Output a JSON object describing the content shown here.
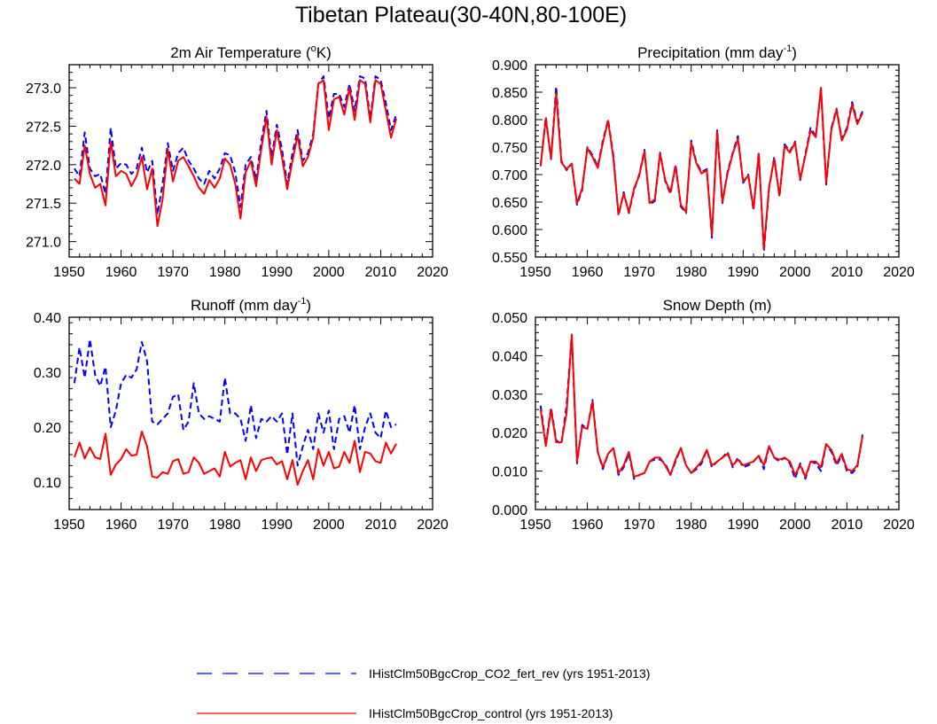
{
  "title": "Tibetan Plateau(30-40N,80-100E)",
  "legend": [
    {
      "label": "IHistClm50BgcCrop_CO2_fert_rev (yrs 1951-2013)",
      "color": "#0000ff",
      "style": "dashed"
    },
    {
      "label": "IHistClm50BgcCrop_control (yrs 1951-2013)",
      "color": "#ff0000",
      "style": "solid"
    }
  ],
  "colors": {
    "co2_fert_rev": "#0000ff",
    "control": "#ff0000"
  },
  "chart_data": [
    {
      "type": "line",
      "panel": "top-left",
      "title_main": "2m Air Temperature (",
      "title_sup": "o",
      "title_end": "K)",
      "xlim": [
        1950,
        2020
      ],
      "ylim": [
        270.8,
        273.3
      ],
      "xticks": [
        1950,
        1960,
        1970,
        1980,
        1990,
        2000,
        2010,
        2020
      ],
      "yticks": [
        271.0,
        271.5,
        272.0,
        272.5,
        273.0
      ],
      "ytick_labels": [
        "271.0",
        "271.5",
        "272.0",
        "272.5",
        "273.0"
      ],
      "x": [
        1951,
        1952,
        1953,
        1954,
        1955,
        1956,
        1957,
        1958,
        1959,
        1960,
        1961,
        1962,
        1963,
        1964,
        1965,
        1966,
        1967,
        1968,
        1969,
        1970,
        1971,
        1972,
        1973,
        1974,
        1975,
        1976,
        1977,
        1978,
        1979,
        1980,
        1981,
        1982,
        1983,
        1984,
        1985,
        1986,
        1987,
        1988,
        1989,
        1990,
        1991,
        1992,
        1993,
        1994,
        1995,
        1996,
        1997,
        1998,
        1999,
        2000,
        2001,
        2002,
        2003,
        2004,
        2005,
        2006,
        2007,
        2008,
        2009,
        2010,
        2011,
        2012,
        2013
      ],
      "series": [
        {
          "name": "IHistClm50BgcCrop_CO2_fert_rev (yrs 1951-2013)",
          "key": "co2_fert_rev",
          "values": [
            271.95,
            271.85,
            272.42,
            271.95,
            271.85,
            271.88,
            271.62,
            272.48,
            271.95,
            272.02,
            272.0,
            271.88,
            271.95,
            272.22,
            271.9,
            272.05,
            271.35,
            271.75,
            272.28,
            271.92,
            272.15,
            272.22,
            272.05,
            271.95,
            271.82,
            271.75,
            271.92,
            271.82,
            271.95,
            272.15,
            272.12,
            271.9,
            271.45,
            272.0,
            272.1,
            271.8,
            272.3,
            272.7,
            272.1,
            272.52,
            272.2,
            271.75,
            272.15,
            272.45,
            272.05,
            272.15,
            272.4,
            273.05,
            273.15,
            272.6,
            272.92,
            272.92,
            272.75,
            273.05,
            272.7,
            273.15,
            273.12,
            272.6,
            273.15,
            273.1,
            272.8,
            272.45,
            272.65
          ]
        },
        {
          "name": "IHistClm50BgcCrop_control (yrs 1951-2013)",
          "key": "control",
          "values": [
            271.82,
            271.75,
            272.25,
            271.88,
            271.7,
            271.75,
            271.47,
            272.3,
            271.85,
            271.92,
            271.88,
            271.72,
            271.85,
            272.1,
            271.68,
            271.95,
            271.2,
            271.55,
            272.2,
            271.78,
            272.05,
            272.1,
            271.98,
            271.85,
            271.7,
            271.62,
            271.8,
            271.7,
            271.82,
            272.08,
            272.0,
            271.75,
            271.3,
            271.9,
            272.05,
            271.72,
            272.2,
            272.62,
            272.0,
            272.45,
            272.1,
            271.68,
            272.05,
            272.38,
            271.98,
            272.1,
            272.35,
            273.05,
            273.1,
            272.45,
            272.85,
            272.88,
            272.65,
            273.0,
            272.58,
            273.1,
            273.05,
            272.55,
            273.1,
            273.05,
            272.7,
            272.35,
            272.6
          ]
        }
      ]
    },
    {
      "type": "line",
      "panel": "top-right",
      "title_main": "Precipitation (mm day",
      "title_sup": "-1",
      "title_end": ")",
      "xlim": [
        1950,
        2020
      ],
      "ylim": [
        0.55,
        0.9
      ],
      "xticks": [
        1950,
        1960,
        1970,
        1980,
        1990,
        2000,
        2010,
        2020
      ],
      "yticks": [
        0.55,
        0.6,
        0.65,
        0.7,
        0.75,
        0.8,
        0.85,
        0.9
      ],
      "ytick_labels": [
        "0.550",
        "0.600",
        "0.650",
        "0.700",
        "0.750",
        "0.800",
        "0.850",
        "0.900"
      ],
      "x": [
        1951,
        1952,
        1953,
        1954,
        1955,
        1956,
        1957,
        1958,
        1959,
        1960,
        1961,
        1962,
        1963,
        1964,
        1965,
        1966,
        1967,
        1968,
        1969,
        1970,
        1971,
        1972,
        1973,
        1974,
        1975,
        1976,
        1977,
        1978,
        1979,
        1980,
        1981,
        1982,
        1983,
        1984,
        1985,
        1986,
        1987,
        1988,
        1989,
        1990,
        1991,
        1992,
        1993,
        1994,
        1995,
        1996,
        1997,
        1998,
        1999,
        2000,
        2001,
        2002,
        2003,
        2004,
        2005,
        2006,
        2007,
        2008,
        2009,
        2010,
        2011,
        2012,
        2013
      ],
      "series": [
        {
          "name": "IHistClm50BgcCrop_CO2_fert_rev (yrs 1951-2013)",
          "key": "co2_fert_rev",
          "values": [
            0.718,
            0.805,
            0.728,
            0.86,
            0.725,
            0.708,
            0.72,
            0.645,
            0.672,
            0.75,
            0.735,
            0.715,
            0.762,
            0.8,
            0.735,
            0.625,
            0.668,
            0.63,
            0.672,
            0.7,
            0.745,
            0.645,
            0.652,
            0.74,
            0.688,
            0.665,
            0.718,
            0.642,
            0.63,
            0.762,
            0.722,
            0.705,
            0.71,
            0.585,
            0.782,
            0.648,
            0.705,
            0.74,
            0.77,
            0.685,
            0.7,
            0.635,
            0.74,
            0.56,
            0.675,
            0.732,
            0.66,
            0.755,
            0.742,
            0.76,
            0.69,
            0.738,
            0.785,
            0.77,
            0.855,
            0.682,
            0.785,
            0.82,
            0.765,
            0.785,
            0.832,
            0.795,
            0.815
          ]
        },
        {
          "name": "IHistClm50BgcCrop_control (yrs 1951-2013)",
          "key": "control",
          "values": [
            0.715,
            0.802,
            0.73,
            0.848,
            0.722,
            0.71,
            0.72,
            0.648,
            0.675,
            0.748,
            0.732,
            0.712,
            0.758,
            0.798,
            0.73,
            0.628,
            0.665,
            0.632,
            0.675,
            0.698,
            0.742,
            0.648,
            0.655,
            0.738,
            0.69,
            0.668,
            0.715,
            0.645,
            0.632,
            0.758,
            0.72,
            0.702,
            0.708,
            0.59,
            0.778,
            0.65,
            0.702,
            0.738,
            0.765,
            0.688,
            0.698,
            0.638,
            0.738,
            0.565,
            0.678,
            0.728,
            0.662,
            0.752,
            0.74,
            0.758,
            0.692,
            0.735,
            0.78,
            0.768,
            0.858,
            0.685,
            0.782,
            0.818,
            0.762,
            0.782,
            0.828,
            0.792,
            0.812
          ]
        }
      ]
    },
    {
      "type": "line",
      "panel": "bottom-left",
      "title_main": "Runoff (mm day",
      "title_sup": "-1",
      "title_end": ")",
      "xlim": [
        1950,
        2020
      ],
      "ylim": [
        0.05,
        0.4
      ],
      "xticks": [
        1950,
        1960,
        1970,
        1980,
        1990,
        2000,
        2010,
        2020
      ],
      "yticks": [
        0.1,
        0.2,
        0.3,
        0.4
      ],
      "ytick_labels": [
        "0.10",
        "0.20",
        "0.30",
        "0.40"
      ],
      "x": [
        1951,
        1952,
        1953,
        1954,
        1955,
        1956,
        1957,
        1958,
        1959,
        1960,
        1961,
        1962,
        1963,
        1964,
        1965,
        1966,
        1967,
        1968,
        1969,
        1970,
        1971,
        1972,
        1973,
        1974,
        1975,
        1976,
        1977,
        1978,
        1979,
        1980,
        1981,
        1982,
        1983,
        1984,
        1985,
        1986,
        1987,
        1988,
        1989,
        1990,
        1991,
        1992,
        1993,
        1994,
        1995,
        1996,
        1997,
        1998,
        1999,
        2000,
        2001,
        2002,
        2003,
        2004,
        2005,
        2006,
        2007,
        2008,
        2009,
        2010,
        2011,
        2012,
        2013
      ],
      "series": [
        {
          "name": "IHistClm50BgcCrop_CO2_fert_rev (yrs 1951-2013)",
          "key": "co2_fert_rev",
          "values": [
            0.28,
            0.345,
            0.29,
            0.36,
            0.295,
            0.275,
            0.31,
            0.2,
            0.23,
            0.28,
            0.295,
            0.29,
            0.305,
            0.355,
            0.32,
            0.21,
            0.205,
            0.215,
            0.225,
            0.255,
            0.26,
            0.195,
            0.21,
            0.28,
            0.225,
            0.215,
            0.22,
            0.215,
            0.21,
            0.29,
            0.225,
            0.225,
            0.215,
            0.175,
            0.24,
            0.18,
            0.215,
            0.21,
            0.22,
            0.21,
            0.225,
            0.15,
            0.225,
            0.13,
            0.165,
            0.195,
            0.16,
            0.225,
            0.19,
            0.23,
            0.16,
            0.215,
            0.22,
            0.19,
            0.24,
            0.16,
            0.2,
            0.225,
            0.19,
            0.18,
            0.23,
            0.2,
            0.205
          ]
        },
        {
          "name": "IHistClm50BgcCrop_control (yrs 1951-2013)",
          "key": "control",
          "values": [
            0.145,
            0.172,
            0.143,
            0.163,
            0.145,
            0.142,
            0.188,
            0.113,
            0.132,
            0.142,
            0.16,
            0.148,
            0.15,
            0.192,
            0.165,
            0.11,
            0.108,
            0.118,
            0.115,
            0.138,
            0.142,
            0.115,
            0.118,
            0.145,
            0.135,
            0.115,
            0.12,
            0.125,
            0.11,
            0.155,
            0.128,
            0.135,
            0.14,
            0.105,
            0.145,
            0.12,
            0.14,
            0.143,
            0.145,
            0.132,
            0.138,
            0.105,
            0.14,
            0.095,
            0.12,
            0.14,
            0.105,
            0.16,
            0.13,
            0.155,
            0.125,
            0.128,
            0.155,
            0.135,
            0.175,
            0.118,
            0.155,
            0.152,
            0.138,
            0.135,
            0.172,
            0.152,
            0.17
          ]
        }
      ]
    },
    {
      "type": "line",
      "panel": "bottom-right",
      "title_main": "Snow Depth (m)",
      "title_sup": "",
      "title_end": "",
      "xlim": [
        1950,
        2020
      ],
      "ylim": [
        0.0,
        0.05
      ],
      "xticks": [
        1950,
        1960,
        1970,
        1980,
        1990,
        2000,
        2010,
        2020
      ],
      "yticks": [
        0.0,
        0.01,
        0.02,
        0.03,
        0.04,
        0.05
      ],
      "ytick_labels": [
        "0.000",
        "0.010",
        "0.020",
        "0.030",
        "0.040",
        "0.050"
      ],
      "x": [
        1951,
        1952,
        1953,
        1954,
        1955,
        1956,
        1957,
        1958,
        1959,
        1960,
        1961,
        1962,
        1963,
        1964,
        1965,
        1966,
        1967,
        1968,
        1969,
        1970,
        1971,
        1972,
        1973,
        1974,
        1975,
        1976,
        1977,
        1978,
        1979,
        1980,
        1981,
        1982,
        1983,
        1984,
        1985,
        1986,
        1987,
        1988,
        1989,
        1990,
        1991,
        1992,
        1993,
        1994,
        1995,
        1996,
        1997,
        1998,
        1999,
        2000,
        2001,
        2002,
        2003,
        2004,
        2005,
        2006,
        2007,
        2008,
        2009,
        2010,
        2011,
        2012,
        2013
      ],
      "series": [
        {
          "name": "IHistClm50BgcCrop_CO2_fert_rev (yrs 1951-2013)",
          "key": "co2_fert_rev",
          "values": [
            0.027,
            0.017,
            0.0265,
            0.018,
            0.017,
            0.027,
            0.0455,
            0.012,
            0.022,
            0.021,
            0.0285,
            0.015,
            0.0105,
            0.0145,
            0.016,
            0.009,
            0.011,
            0.0145,
            0.008,
            0.009,
            0.0095,
            0.0125,
            0.013,
            0.013,
            0.012,
            0.009,
            0.0125,
            0.016,
            0.0115,
            0.0095,
            0.0105,
            0.012,
            0.0155,
            0.011,
            0.0125,
            0.0135,
            0.015,
            0.011,
            0.0135,
            0.011,
            0.0115,
            0.0125,
            0.014,
            0.0105,
            0.0165,
            0.0135,
            0.0125,
            0.0135,
            0.012,
            0.008,
            0.012,
            0.008,
            0.0125,
            0.012,
            0.01,
            0.017,
            0.015,
            0.0115,
            0.014,
            0.01,
            0.0095,
            0.011,
            0.0195
          ]
        },
        {
          "name": "IHistClm50BgcCrop_control (yrs 1951-2013)",
          "key": "control",
          "values": [
            0.026,
            0.0165,
            0.026,
            0.0175,
            0.0175,
            0.025,
            0.0455,
            0.0125,
            0.0215,
            0.021,
            0.028,
            0.015,
            0.011,
            0.0145,
            0.016,
            0.0095,
            0.0115,
            0.015,
            0.0085,
            0.009,
            0.0095,
            0.0125,
            0.0135,
            0.0135,
            0.0115,
            0.009,
            0.013,
            0.016,
            0.0115,
            0.0095,
            0.011,
            0.0125,
            0.0155,
            0.0115,
            0.0125,
            0.0135,
            0.0145,
            0.0115,
            0.013,
            0.0115,
            0.012,
            0.0125,
            0.014,
            0.0115,
            0.0165,
            0.0135,
            0.013,
            0.0135,
            0.0125,
            0.009,
            0.0115,
            0.0085,
            0.0125,
            0.0125,
            0.011,
            0.017,
            0.0155,
            0.012,
            0.0145,
            0.0105,
            0.01,
            0.0115,
            0.019
          ]
        }
      ]
    }
  ]
}
